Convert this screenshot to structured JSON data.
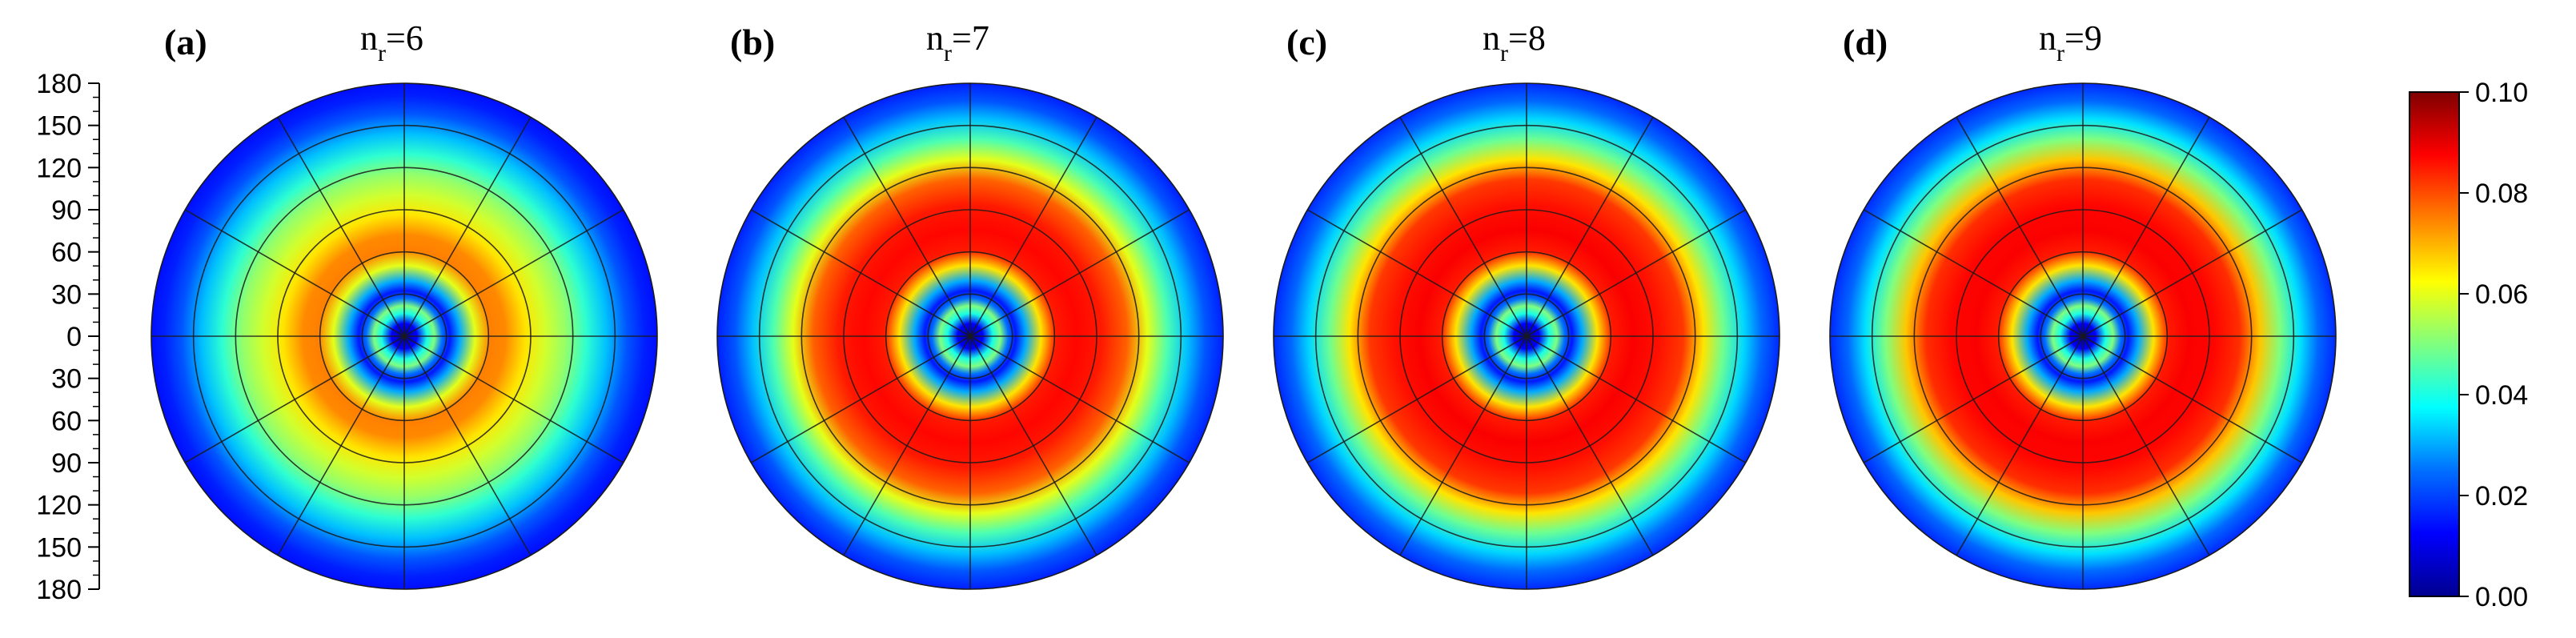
{
  "chart_data": [
    {
      "type": "heatmap",
      "panel_label": "(a)",
      "title": {
        "base": "n",
        "sub": "r",
        "tail": "=6"
      },
      "radial_profile": [
        [
          0.0,
          0.0
        ],
        [
          0.05,
          0.012
        ],
        [
          0.09,
          0.04
        ],
        [
          0.12,
          0.05
        ],
        [
          0.15,
          0.025
        ],
        [
          0.18,
          0.015
        ],
        [
          0.22,
          0.03
        ],
        [
          0.28,
          0.06
        ],
        [
          0.34,
          0.075
        ],
        [
          0.4,
          0.074
        ],
        [
          0.48,
          0.065
        ],
        [
          0.56,
          0.058
        ],
        [
          0.64,
          0.052
        ],
        [
          0.72,
          0.042
        ],
        [
          0.8,
          0.032
        ],
        [
          0.88,
          0.022
        ],
        [
          0.95,
          0.016
        ],
        [
          1.0,
          0.014
        ]
      ]
    },
    {
      "type": "heatmap",
      "panel_label": "(b)",
      "title": {
        "base": "n",
        "sub": "r",
        "tail": "=7"
      },
      "radial_profile": [
        [
          0.0,
          0.0
        ],
        [
          0.05,
          0.012
        ],
        [
          0.09,
          0.04
        ],
        [
          0.12,
          0.05
        ],
        [
          0.15,
          0.025
        ],
        [
          0.18,
          0.015
        ],
        [
          0.22,
          0.03
        ],
        [
          0.28,
          0.065
        ],
        [
          0.34,
          0.085
        ],
        [
          0.42,
          0.087
        ],
        [
          0.52,
          0.085
        ],
        [
          0.62,
          0.078
        ],
        [
          0.7,
          0.06
        ],
        [
          0.78,
          0.045
        ],
        [
          0.86,
          0.032
        ],
        [
          0.93,
          0.022
        ],
        [
          1.0,
          0.016
        ]
      ]
    },
    {
      "type": "heatmap",
      "panel_label": "(c)",
      "title": {
        "base": "n",
        "sub": "r",
        "tail": "=8"
      },
      "radial_profile": [
        [
          0.0,
          0.0
        ],
        [
          0.05,
          0.012
        ],
        [
          0.09,
          0.04
        ],
        [
          0.12,
          0.05
        ],
        [
          0.15,
          0.025
        ],
        [
          0.18,
          0.015
        ],
        [
          0.22,
          0.03
        ],
        [
          0.28,
          0.065
        ],
        [
          0.34,
          0.085
        ],
        [
          0.42,
          0.088
        ],
        [
          0.52,
          0.086
        ],
        [
          0.62,
          0.082
        ],
        [
          0.7,
          0.065
        ],
        [
          0.78,
          0.048
        ],
        [
          0.86,
          0.034
        ],
        [
          0.93,
          0.024
        ],
        [
          1.0,
          0.017
        ]
      ]
    },
    {
      "type": "heatmap",
      "panel_label": "(d)",
      "title": {
        "base": "n",
        "sub": "r",
        "tail": "=9"
      },
      "radial_profile": [
        [
          0.0,
          0.0
        ],
        [
          0.05,
          0.012
        ],
        [
          0.09,
          0.04
        ],
        [
          0.12,
          0.05
        ],
        [
          0.15,
          0.025
        ],
        [
          0.18,
          0.015
        ],
        [
          0.22,
          0.03
        ],
        [
          0.28,
          0.065
        ],
        [
          0.34,
          0.085
        ],
        [
          0.42,
          0.088
        ],
        [
          0.52,
          0.087
        ],
        [
          0.62,
          0.083
        ],
        [
          0.7,
          0.068
        ],
        [
          0.78,
          0.05
        ],
        [
          0.86,
          0.035
        ],
        [
          0.93,
          0.024
        ],
        [
          1.0,
          0.017
        ]
      ]
    }
  ],
  "axis": {
    "tick_labels": [
      "180",
      "150",
      "120",
      "90",
      "60",
      "30",
      "0",
      "30",
      "60",
      "90",
      "120",
      "150",
      "180"
    ],
    "ylim": [
      -180,
      180
    ]
  },
  "grid": {
    "rings": [
      0.1667,
      0.3333,
      0.5,
      0.6667,
      0.8333
    ],
    "spoke_angles_deg": [
      0,
      30,
      60,
      90,
      120,
      150,
      180,
      210,
      240,
      270,
      300,
      330
    ]
  },
  "colorbar": {
    "colormap": "jet",
    "min": 0.0,
    "max": 0.1,
    "tick_labels": [
      "0.10",
      "0.08",
      "0.06",
      "0.04",
      "0.02",
      "0.00"
    ],
    "tick_values": [
      0.1,
      0.08,
      0.06,
      0.04,
      0.02,
      0.0
    ]
  }
}
